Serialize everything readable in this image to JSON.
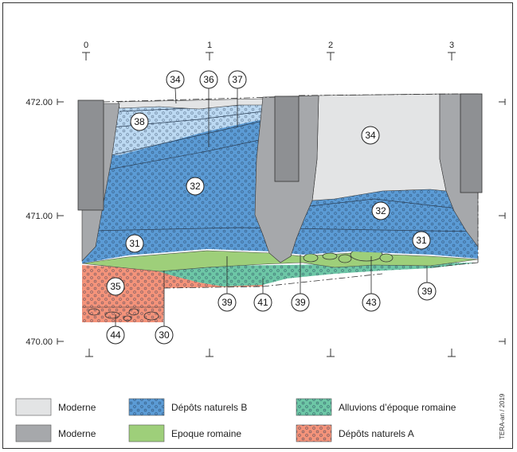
{
  "elevations": [
    "472.00",
    "471.00",
    "470.00"
  ],
  "meters": [
    "0",
    "1",
    "2",
    "3"
  ],
  "layer_numbers": {
    "l34_top": "34",
    "l36_top": "36",
    "l37_top": "37",
    "l38": "38",
    "l34_mid": "34",
    "l32_left": "32",
    "l32_right": "32",
    "l31_left": "31",
    "l31_right": "31",
    "l35": "35",
    "l44": "44",
    "l30": "30",
    "l39_a": "39",
    "l41": "41",
    "l39_b": "39",
    "l43": "43",
    "l39_c": "39"
  },
  "legend": [
    {
      "label": "Moderne",
      "color": "#e3e4e5",
      "pattern": "none"
    },
    {
      "label": "Moderne",
      "color": "#a6a8ab",
      "pattern": "none"
    },
    {
      "label": "Dépôts naturels B",
      "color": "#5b9bd5",
      "pattern": "dots"
    },
    {
      "label": "Epoque romaine",
      "color": "#9ecf7a",
      "pattern": "none"
    },
    {
      "label": "Alluvions d’époque romaine",
      "color": "#6dc7a6",
      "pattern": "dots"
    },
    {
      "label": "Dépôts naturels A",
      "color": "#f4937a",
      "pattern": "dots"
    }
  ],
  "credit": "TERA-an / 2019"
}
